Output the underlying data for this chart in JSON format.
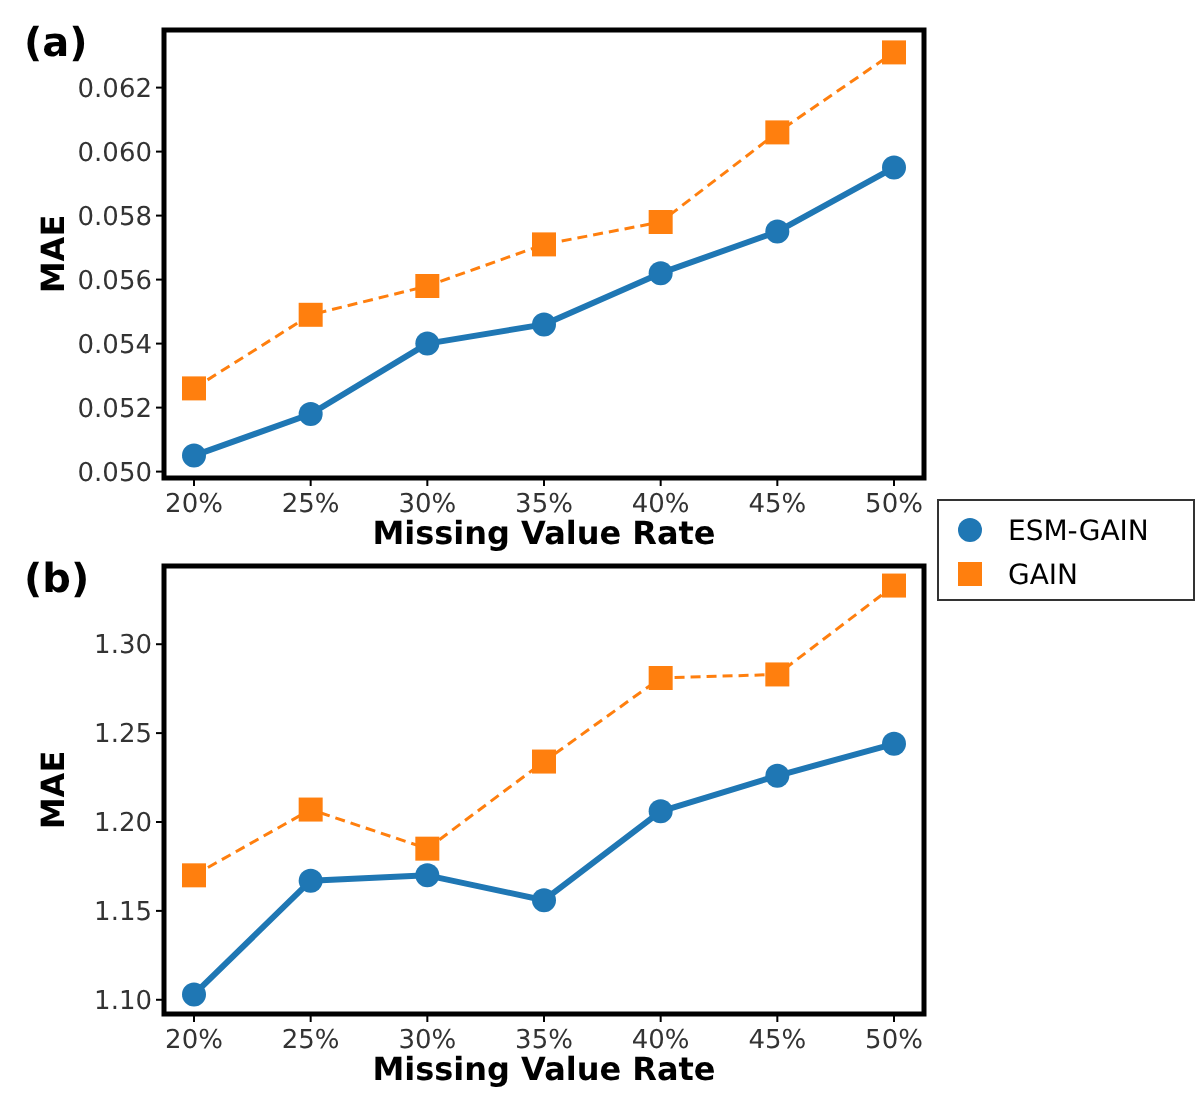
{
  "chart_data": [
    {
      "type": "line",
      "title": "(a)",
      "xlabel": "Missing Value Rate",
      "ylabel": "MAE",
      "categories": [
        "20%",
        "25%",
        "30%",
        "35%",
        "40%",
        "45%",
        "50%"
      ],
      "ylim": [
        0.0498,
        0.0638
      ],
      "yticks": [
        {
          "value": 0.05,
          "label": "0.050"
        },
        {
          "value": 0.052,
          "label": "0.052"
        },
        {
          "value": 0.054,
          "label": "0.054"
        },
        {
          "value": 0.056,
          "label": "0.056"
        },
        {
          "value": 0.058,
          "label": "0.058"
        },
        {
          "value": 0.06,
          "label": "0.060"
        },
        {
          "value": 0.062,
          "label": "0.062"
        }
      ],
      "grid": false,
      "legend": "right",
      "series": [
        {
          "name": "ESM-GAIN",
          "color": "#1f77b4",
          "marker": "circle",
          "line_style": "solid",
          "values": [
            0.0505,
            0.0518,
            0.054,
            0.0546,
            0.0562,
            0.0575,
            0.0595
          ]
        },
        {
          "name": "GAIN",
          "color": "#ff7f0e",
          "marker": "square",
          "line_style": "dashed",
          "values": [
            0.0526,
            0.0549,
            0.0558,
            0.0571,
            0.0578,
            0.0606,
            0.0631
          ]
        }
      ]
    },
    {
      "type": "line",
      "title": "(b)",
      "xlabel": "Missing Value Rate",
      "ylabel": "MAE",
      "categories": [
        "20%",
        "25%",
        "30%",
        "35%",
        "40%",
        "45%",
        "50%"
      ],
      "ylim": [
        1.092,
        1.344
      ],
      "yticks": [
        {
          "value": 1.1,
          "label": "1.10"
        },
        {
          "value": 1.15,
          "label": "1.15"
        },
        {
          "value": 1.2,
          "label": "1.20"
        },
        {
          "value": 1.25,
          "label": "1.25"
        },
        {
          "value": 1.3,
          "label": "1.30"
        }
      ],
      "grid": false,
      "series": [
        {
          "color": "#1f77b4",
          "marker": "circle",
          "line_style": "solid",
          "values": [
            1.103,
            1.167,
            1.17,
            1.156,
            1.206,
            1.226,
            1.244
          ]
        },
        {
          "color": "#ff7f0e",
          "marker": "square",
          "line_style": "dashed",
          "values": [
            1.17,
            1.207,
            1.185,
            1.234,
            1.281,
            1.283,
            1.333
          ]
        }
      ]
    }
  ]
}
